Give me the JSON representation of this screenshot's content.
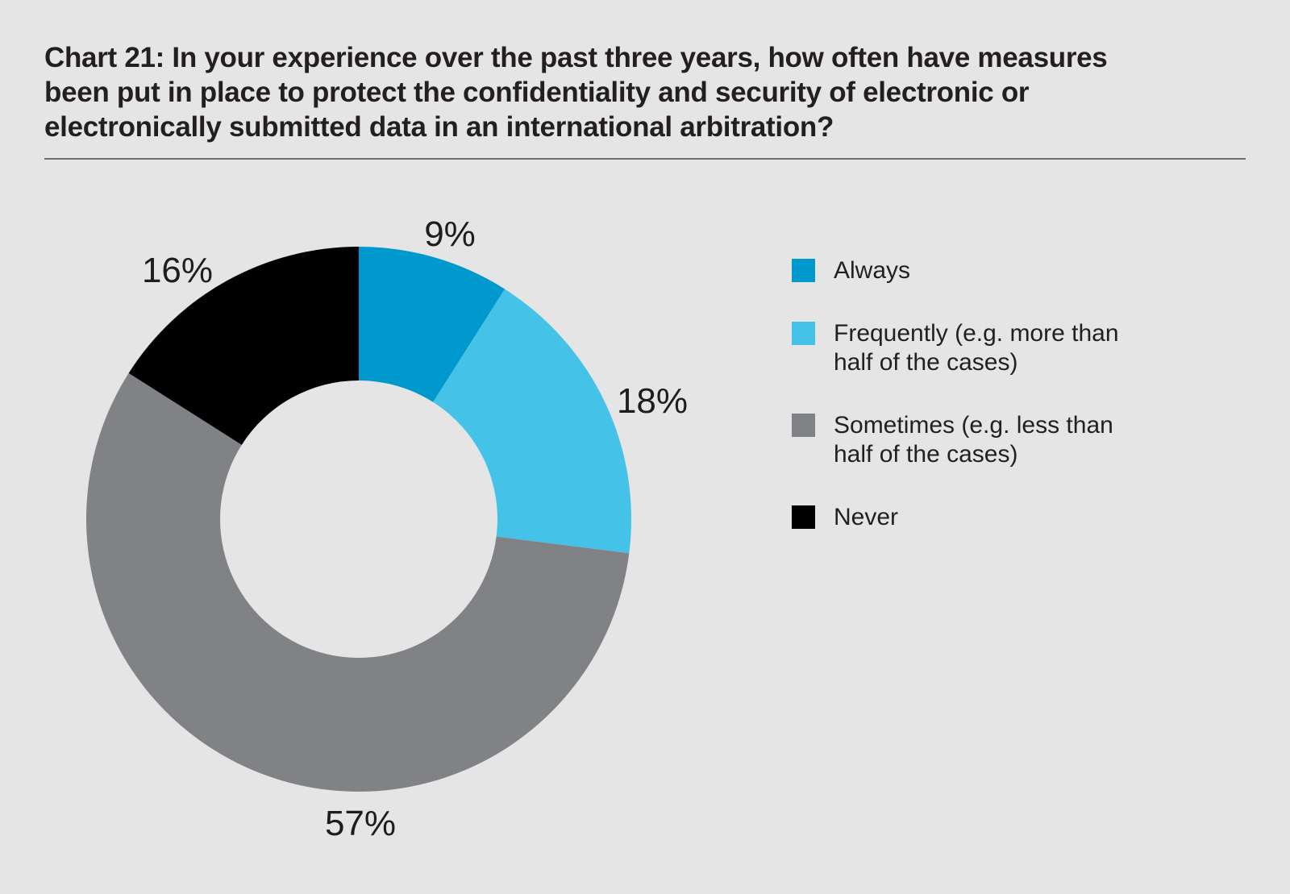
{
  "page": {
    "background_color": "#e6e5e5",
    "divider_color": "#6d6e71"
  },
  "header": {
    "title_lines": [
      "Chart 21: In your experience over the past three years, how often have measures",
      "been put in place to protect the confidentiality and security of electronic or",
      "electronically submitted data in an international arbitration?"
    ]
  },
  "chart_data": {
    "type": "pie",
    "subtype": "donut",
    "title": "Chart 21: In your experience over the past three years, how often have measures been put in place to protect the confidentiality and security of electronic or electronically submitted data in an international arbitration?",
    "unit": "%",
    "start_angle": "top",
    "direction": "clockwise",
    "legend_position": "right",
    "segments": [
      {
        "label": "Always",
        "value": 9,
        "pct_label": "9%",
        "color": "#0099ce"
      },
      {
        "label": "Frequently (e.g. more than half of the cases)",
        "value": 18,
        "pct_label": "18%",
        "color": "#45c2e8"
      },
      {
        "label": "Sometimes (e.g. less than half of the cases)",
        "value": 57,
        "pct_label": "57%",
        "color": "#808285"
      },
      {
        "label": "Never",
        "value": 16,
        "pct_label": "16%",
        "color": "#000000"
      }
    ],
    "legend": [
      {
        "lines": [
          "Always"
        ]
      },
      {
        "lines": [
          "Frequently (e.g. more than",
          "half of the cases)"
        ]
      },
      {
        "lines": [
          "Sometimes (e.g. less than",
          "half of the cases)"
        ]
      },
      {
        "lines": [
          "Never"
        ]
      }
    ]
  }
}
